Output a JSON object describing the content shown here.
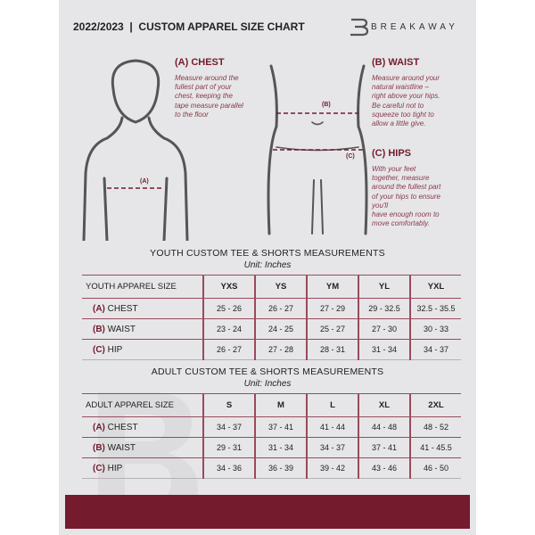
{
  "header": {
    "title": "2022/2023  |  CUSTOM APPAREL SIZE CHART",
    "brand": "BREAKAWAY",
    "logo_letter": "B"
  },
  "chest": {
    "heading": "(A) CHEST",
    "marker": "(A)",
    "description": [
      "Measure around the",
      "fullest part of your",
      "chest, keeping the",
      "tape measure parallel",
      "to the floor"
    ]
  },
  "waist": {
    "heading": "(B) WAIST",
    "marker": "(B)",
    "description": [
      "Measure around your",
      "natural waistline –",
      "right above your hips.",
      "Be careful not to",
      "squeeze too tight to",
      "allow a little give."
    ]
  },
  "hips": {
    "heading": "(C) HIPS",
    "marker": "(C)",
    "description": [
      "With your feet",
      "together, measure",
      "around the fullest part",
      "of your hips to ensure",
      "you'll",
      "have enough room to",
      "move comfortably."
    ]
  },
  "youth": {
    "title": "YOUTH CUSTOM TEE & SHORTS MEASUREMENTS",
    "unit": "Unit: Inches",
    "header": "YOUTH APPAREL SIZE",
    "sizes": [
      "YXS",
      "YS",
      "YM",
      "YL",
      "YXL"
    ],
    "rows": [
      {
        "key": "(A)",
        "label": "CHEST",
        "values": [
          "25 - 26",
          "26 - 27",
          "27 - 29",
          "29 - 32.5",
          "32.5 - 35.5"
        ]
      },
      {
        "key": "(B)",
        "label": "WAIST",
        "values": [
          "23 - 24",
          "24 - 25",
          "25 - 27",
          "27 - 30",
          "30 - 33"
        ]
      },
      {
        "key": "(C)",
        "label": "HIP",
        "values": [
          "26 - 27",
          "27 - 28",
          "28 - 31",
          "31 - 34",
          "34 - 37"
        ]
      }
    ]
  },
  "adult": {
    "title": "ADULT CUSTOM TEE & SHORTS MEASUREMENTS",
    "unit": "Unit: Inches",
    "header": "ADULT APPAREL SIZE",
    "sizes": [
      "S",
      "M",
      "L",
      "XL",
      "2XL"
    ],
    "rows": [
      {
        "key": "(A)",
        "label": "CHEST",
        "values": [
          "34 - 37",
          "37 - 41",
          "41 - 44",
          "44 - 48",
          "48 - 52"
        ]
      },
      {
        "key": "(B)",
        "label": "WAIST",
        "values": [
          "29 - 31",
          "31 - 34",
          "34 - 37",
          "37 - 41",
          "41 - 45.5"
        ]
      },
      {
        "key": "(C)",
        "label": "HIP",
        "values": [
          "34 - 36",
          "36 - 39",
          "39 - 42",
          "43 - 46",
          "46 - 50"
        ]
      }
    ]
  },
  "colors": {
    "accent": "#741b2e",
    "background": "#e6e6e8",
    "figure": "#555555"
  }
}
